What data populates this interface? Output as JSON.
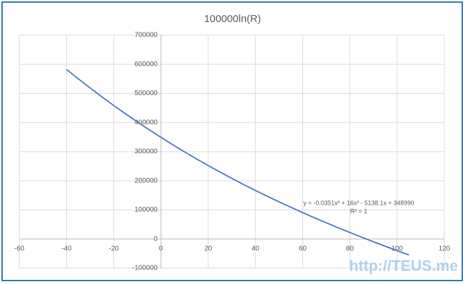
{
  "chart_data": {
    "type": "line",
    "title": "100000ln(R)",
    "x": [
      -40,
      -35,
      -30,
      -25,
      -20,
      -15,
      -10,
      -5,
      0,
      5,
      10,
      15,
      20,
      25,
      30,
      35,
      40,
      45,
      50,
      55,
      60,
      65,
      70,
      75,
      80,
      85,
      90,
      95,
      100,
      105
    ],
    "series": [
      {
        "color": "#4472c4",
        "values": [
          582360,
          549928,
          518481,
          487991,
          458433,
          429780,
          402006,
          375085,
          348990,
          323695,
          299174,
          275400,
          252347,
          229989,
          208299,
          187252,
          166820,
          146977,
          127698,
          108955,
          90722,
          72974,
          55684,
          38825,
          22371,
          6296,
          -9427,
          -24823,
          -39920,
          -54743
        ]
      }
    ],
    "xlim": [
      -60,
      120
    ],
    "xticks": [
      -60,
      -40,
      -20,
      0,
      20,
      40,
      60,
      80,
      100,
      120
    ],
    "ylim": [
      -100000,
      700000
    ],
    "yticks": [
      -100000,
      0,
      100000,
      200000,
      300000,
      400000,
      500000,
      600000,
      700000
    ],
    "grid": true,
    "annotations": [
      "y = -0.0351x³ + 16x² - 5138.1x + 348990",
      "R² = 1"
    ]
  },
  "watermark": "http://TEUS.me"
}
